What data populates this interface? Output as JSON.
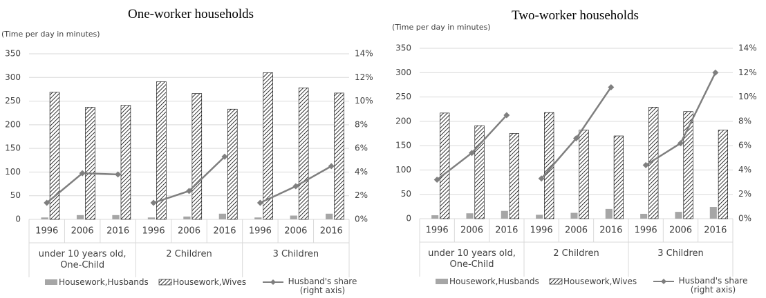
{
  "chart_data": [
    {
      "type": "bar",
      "title": "One-worker households",
      "y_label": "(Time per day in minutes)",
      "categories": [
        "1996",
        "2006",
        "2016",
        "1996",
        "2006",
        "2016",
        "1996",
        "2006",
        "2016"
      ],
      "category_groups": [
        "under 10 years old, One-Child",
        "2 Children",
        "3 Children"
      ],
      "series": [
        {
          "name": "Housework,Husbands",
          "color": "#a6a6a6",
          "values": [
            4,
            9,
            9,
            4,
            6,
            12,
            4,
            8,
            12
          ]
        },
        {
          "name": "Housework,Wives",
          "color": "#000000",
          "hatch": true,
          "values": [
            269,
            237,
            241,
            291,
            266,
            233,
            310,
            278,
            267
          ]
        },
        {
          "name": "Husband's share (right axis)",
          "type": "line",
          "axis": "y2",
          "color": "#7f7f7f",
          "values": [
            1.4,
            3.9,
            3.8,
            1.4,
            2.4,
            5.3,
            1.4,
            2.8,
            4.5
          ]
        }
      ],
      "ylim": [
        0,
        350
      ],
      "yticks": [
        0,
        50,
        100,
        150,
        200,
        250,
        300,
        350
      ],
      "y2lim": [
        0,
        14
      ],
      "y2ticks": [
        {
          "value": 0,
          "label": "0%"
        },
        {
          "value": 2,
          "label": "2%"
        },
        {
          "value": 4,
          "label": "4%"
        },
        {
          "value": 6,
          "label": "6%"
        },
        {
          "value": 8,
          "label": "8%"
        },
        {
          "value": 10,
          "label": "10%"
        },
        {
          "value": 12,
          "label": "12%"
        },
        {
          "value": 14,
          "label": "14%"
        }
      ],
      "grid": true,
      "legend": "bottom"
    },
    {
      "type": "bar",
      "title": "Two-worker households",
      "y_label": "(Time per day in minutes)",
      "categories": [
        "1996",
        "2006",
        "2016",
        "1996",
        "2006",
        "2016",
        "1996",
        "2006",
        "2016"
      ],
      "category_groups": [
        "under 10 years old, One-Child",
        "2 Children",
        "3 Children"
      ],
      "series": [
        {
          "name": "Housework,Husbands",
          "color": "#a6a6a6",
          "values": [
            7,
            11,
            16,
            8,
            12,
            20,
            10,
            14,
            24
          ]
        },
        {
          "name": "Housework,Wives",
          "color": "#000000",
          "hatch": true,
          "values": [
            217,
            191,
            175,
            218,
            182,
            170,
            229,
            220,
            182
          ]
        },
        {
          "name": "Husband's share (right axis)",
          "type": "line",
          "axis": "y2",
          "color": "#7f7f7f",
          "values": [
            3.2,
            5.4,
            8.5,
            3.3,
            6.6,
            10.8,
            4.4,
            6.2,
            12.0
          ]
        }
      ],
      "ylim": [
        0,
        350
      ],
      "yticks": [
        0,
        50,
        100,
        150,
        200,
        250,
        300,
        350
      ],
      "y2lim": [
        0,
        14
      ],
      "y2ticks": [
        {
          "value": 0,
          "label": "0%"
        },
        {
          "value": 2,
          "label": "2%"
        },
        {
          "value": 4,
          "label": "4%"
        },
        {
          "value": 6,
          "label": "6%"
        },
        {
          "value": 8,
          "label": "8%"
        },
        {
          "value": 10,
          "label": "10%"
        },
        {
          "value": 12,
          "label": "12%"
        },
        {
          "value": 14,
          "label": "14%"
        }
      ],
      "grid": true,
      "legend": "bottom"
    }
  ]
}
